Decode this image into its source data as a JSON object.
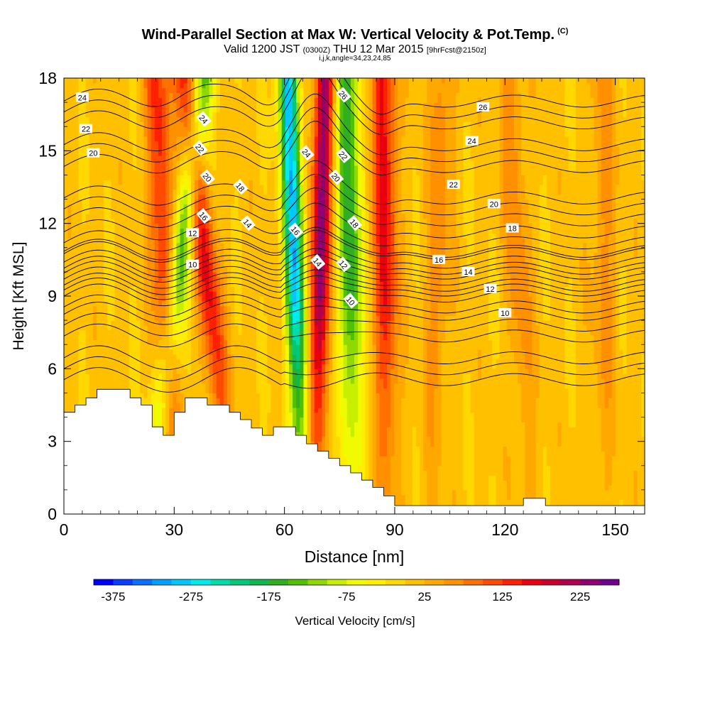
{
  "header": {
    "title_main": "Wind-Parallel Section at Max W: Vertical Velocity & Pot.Temp.",
    "title_mark": "(C)",
    "valid_prefix": "Valid 1200 JST",
    "valid_utc": "(0300Z)",
    "valid_date": "THU 12 Mar 2015",
    "valid_fcst": "[9hrFcst@2150z]",
    "indices": "i,j,k,angle=34,23,24,85"
  },
  "chart_data": {
    "type": "heatmap",
    "title": "Wind-Parallel Section at Max W: Vertical Velocity & Pot.Temp.",
    "xlabel": "Distance [nm]",
    "ylabel": "Height [Kft MSL]",
    "xlim": [
      0,
      158
    ],
    "ylim": [
      0,
      18
    ],
    "xticks": [
      0,
      30,
      60,
      90,
      120,
      150
    ],
    "yticks": [
      0,
      3,
      6,
      9,
      12,
      15,
      18
    ],
    "colorbar": {
      "label": "Vertical Velocity [cm/s]",
      "tick_labels": [
        "-375",
        "-275",
        "-175",
        "-75",
        "25",
        "125",
        "225"
      ],
      "min": -400,
      "max": 275,
      "step": 25,
      "colors": [
        "#0000ff",
        "#0a3cff",
        "#0a6eff",
        "#00a0ff",
        "#00c8ff",
        "#00ecec",
        "#00dcaa",
        "#00c878",
        "#10b850",
        "#30b020",
        "#50c000",
        "#90d800",
        "#c8ee00",
        "#f0fa00",
        "#ffee00",
        "#ffd800",
        "#ffc000",
        "#ffa800",
        "#ff9000",
        "#ff7000",
        "#ff4a00",
        "#ff2000",
        "#e80010",
        "#c80030",
        "#b00050",
        "#900070",
        "#700090"
      ]
    },
    "updrafts": [
      {
        "x_base": 30,
        "x_top": 25,
        "w": 130
      },
      {
        "x_base": 46,
        "x_top": 33,
        "w": 150
      },
      {
        "x_base": 68,
        "x_top": 71,
        "w": 225
      },
      {
        "x_base": 88,
        "x_top": 87,
        "w": 150
      },
      {
        "x_base": 100,
        "x_top": 103,
        "w": 60
      },
      {
        "x_base": 127,
        "x_top": 121,
        "w": 60
      },
      {
        "x_base": 147,
        "x_top": 147,
        "w": 50
      }
    ],
    "downdrafts": [
      {
        "x_base": 23,
        "x_top": 38,
        "w": -150
      },
      {
        "x_base": 65,
        "x_top": 61,
        "w": -300
      },
      {
        "x_base": 79,
        "x_top": 77,
        "w": -180
      }
    ],
    "terrain": [
      [
        0,
        4.2
      ],
      [
        3,
        4.2
      ],
      [
        3,
        4.5
      ],
      [
        6,
        4.5
      ],
      [
        6,
        4.8
      ],
      [
        9,
        4.8
      ],
      [
        9,
        5.15
      ],
      [
        18,
        5.15
      ],
      [
        18,
        4.8
      ],
      [
        21,
        4.8
      ],
      [
        21,
        4.5
      ],
      [
        24,
        4.5
      ],
      [
        24,
        3.6
      ],
      [
        27,
        3.6
      ],
      [
        27,
        3.25
      ],
      [
        30,
        3.25
      ],
      [
        30,
        4.2
      ],
      [
        33,
        4.2
      ],
      [
        33,
        4.8
      ],
      [
        39,
        4.8
      ],
      [
        39,
        4.5
      ],
      [
        45,
        4.5
      ],
      [
        45,
        4.2
      ],
      [
        48,
        4.2
      ],
      [
        48,
        3.9
      ],
      [
        51,
        3.9
      ],
      [
        51,
        3.55
      ],
      [
        54,
        3.55
      ],
      [
        54,
        3.25
      ],
      [
        57,
        3.25
      ],
      [
        57,
        3.6
      ],
      [
        63,
        3.6
      ],
      [
        63,
        3.25
      ],
      [
        66,
        3.25
      ],
      [
        66,
        2.9
      ],
      [
        69,
        2.9
      ],
      [
        69,
        2.6
      ],
      [
        72,
        2.6
      ],
      [
        72,
        2.3
      ],
      [
        75,
        2.3
      ],
      [
        75,
        2.0
      ],
      [
        78,
        2.0
      ],
      [
        78,
        1.7
      ],
      [
        81,
        1.7
      ],
      [
        81,
        1.4
      ],
      [
        84,
        1.4
      ],
      [
        84,
        1.1
      ],
      [
        87,
        1.1
      ],
      [
        87,
        0.75
      ],
      [
        90,
        0.75
      ],
      [
        90,
        0.35
      ],
      [
        125,
        0.35
      ],
      [
        125,
        0.65
      ],
      [
        131,
        0.65
      ],
      [
        131,
        0.35
      ],
      [
        158,
        0.35
      ]
    ],
    "contours": [
      {
        "label": "10",
        "base": 6.0,
        "labels_at": [
          [
            35,
            10.3
          ],
          [
            78,
            8.8
          ],
          [
            120,
            8.3
          ]
        ]
      },
      {
        "label": "12",
        "base": 7.8,
        "labels_at": [
          [
            35,
            11.6
          ],
          [
            76,
            10.3
          ],
          [
            116,
            9.3
          ]
        ]
      },
      {
        "label": "14",
        "base": 9.0,
        "labels_at": [
          [
            50,
            12.0
          ],
          [
            69,
            10.4
          ],
          [
            110,
            10.0
          ]
        ]
      },
      {
        "label": "16",
        "base": 9.7,
        "labels_at": [
          [
            38,
            12.3
          ],
          [
            63,
            11.7
          ],
          [
            102,
            10.5
          ]
        ]
      },
      {
        "label": "18",
        "base": 10.4,
        "labels_at": [
          [
            48,
            13.5
          ],
          [
            79,
            12.0
          ],
          [
            122,
            11.8
          ]
        ]
      },
      {
        "label": "20",
        "base": 11.2,
        "labels_at": [
          [
            8,
            14.9
          ],
          [
            39,
            13.9
          ],
          [
            74,
            13.9
          ],
          [
            117,
            12.8
          ]
        ]
      },
      {
        "label": "22",
        "base": 12.6,
        "labels_at": [
          [
            6,
            15.9
          ],
          [
            37,
            15.1
          ],
          [
            76,
            14.8
          ],
          [
            106,
            13.6
          ]
        ]
      },
      {
        "label": "24",
        "base": 14.8,
        "labels_at": [
          [
            5,
            17.2
          ],
          [
            38,
            16.3
          ],
          [
            66,
            14.9
          ],
          [
            111,
            15.4
          ]
        ]
      },
      {
        "label": "26",
        "base": 16.6,
        "labels_at": [
          [
            76,
            17.3
          ],
          [
            114,
            16.8
          ]
        ]
      }
    ]
  }
}
